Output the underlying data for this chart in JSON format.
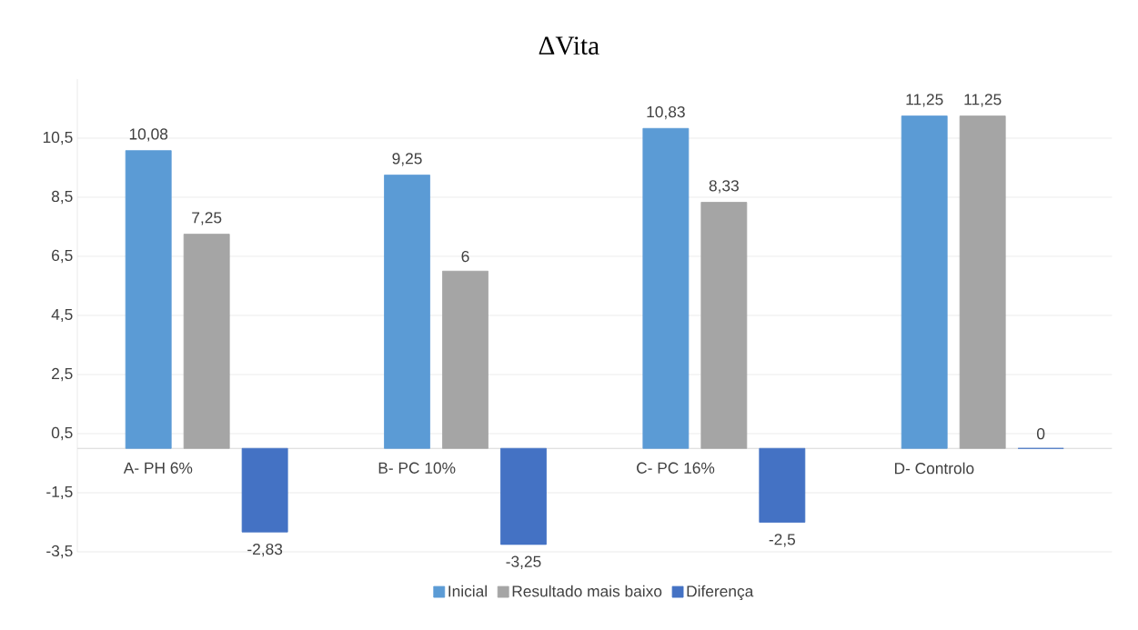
{
  "chart_data": {
    "type": "bar",
    "title": "ΔVita",
    "categories": [
      "A- PH 6%",
      "B- PC 10%",
      "C- PC 16%",
      "D- Controlo"
    ],
    "series": [
      {
        "name": "Inicial",
        "color": "#5b9bd5",
        "values": [
          10.08,
          9.25,
          10.83,
          11.25
        ],
        "value_labels": [
          "10,08",
          "9,25",
          "10,83",
          "11,25"
        ]
      },
      {
        "name": "Resultado mais baixo",
        "color": "#a5a5a5",
        "values": [
          7.25,
          6,
          8.33,
          11.25
        ],
        "value_labels": [
          "7,25",
          "6",
          "8,33",
          "11,25"
        ]
      },
      {
        "name": "Diferença",
        "color": "#4472c4",
        "values": [
          -2.83,
          -3.25,
          -2.5,
          0
        ],
        "value_labels": [
          "-2,83",
          "-3,25",
          "-2,5",
          "0"
        ]
      }
    ],
    "ylim": [
      -3.5,
      12.5
    ],
    "yticks": [
      {
        "value": -3.5,
        "label": "-3,5"
      },
      {
        "value": -1.5,
        "label": "-1,5"
      },
      {
        "value": 0.5,
        "label": "0,5"
      },
      {
        "value": 2.5,
        "label": "2,5"
      },
      {
        "value": 4.5,
        "label": "4,5"
      },
      {
        "value": 6.5,
        "label": "6,5"
      },
      {
        "value": 8.5,
        "label": "8,5"
      },
      {
        "value": 10.5,
        "label": "10,5"
      }
    ],
    "grid": "y",
    "legend": "bottom"
  }
}
